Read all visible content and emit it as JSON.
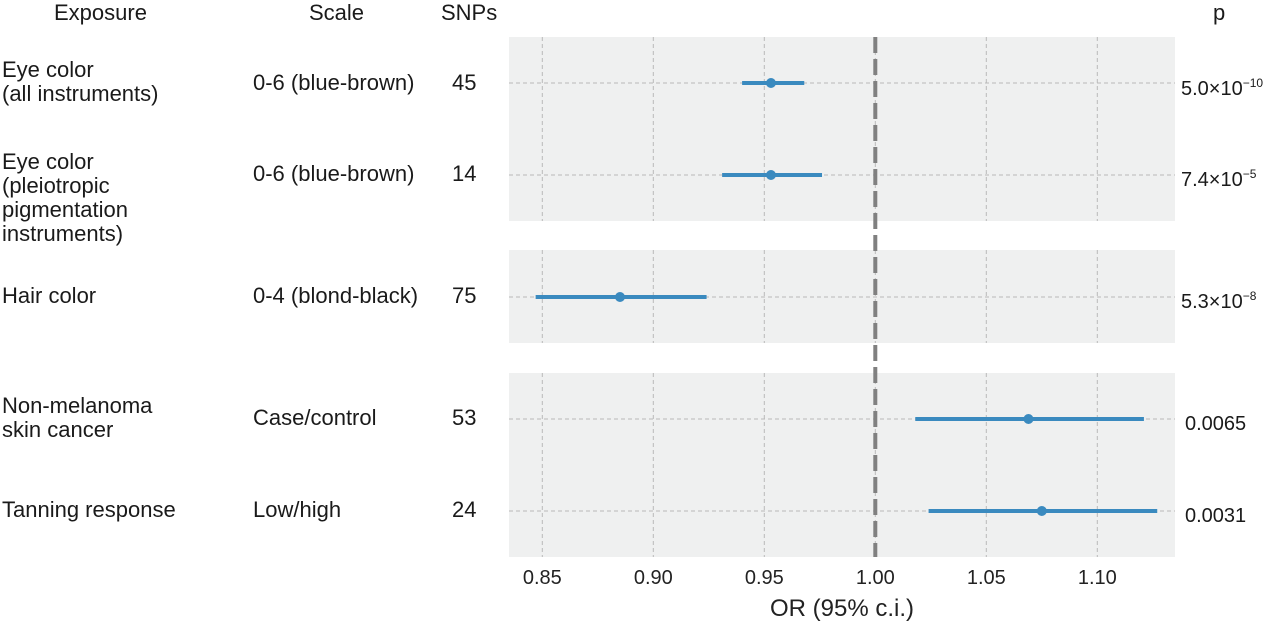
{
  "headers": {
    "exposure": "Exposure",
    "scale": "Scale",
    "snps": "SNPs",
    "p": "p"
  },
  "rows": [
    {
      "exposure": "Eye color\n(all instruments)",
      "scale": "0-6 (blue-brown)",
      "snps": "45",
      "p_base": "5.0×10",
      "p_exp": "−10"
    },
    {
      "exposure": "Eye color\n(pleiotropic\npigmentation\ninstruments)",
      "scale": "0-6 (blue-brown)",
      "snps": "14",
      "p_base": "7.4×10",
      "p_exp": "−5"
    },
    {
      "exposure": "Hair color",
      "scale": "0-4 (blond-black)",
      "snps": "75",
      "p_base": "5.3×10",
      "p_exp": "−8"
    },
    {
      "exposure": "Non-melanoma\nskin cancer",
      "scale": "Case/control",
      "snps": "53",
      "p_base": "0.0065",
      "p_exp": ""
    },
    {
      "exposure": "Tanning response",
      "scale": "Low/high",
      "snps": "24",
      "p_base": "0.0031",
      "p_exp": ""
    }
  ],
  "chart_data": {
    "type": "scatter",
    "subtype": "forest",
    "xlabel": "OR (95% c.i.)",
    "xlim": [
      0.835,
      1.135
    ],
    "xticks": [
      "0.85",
      "0.90",
      "0.95",
      "1.00",
      "1.05",
      "1.10"
    ],
    "reference_line": 1.0,
    "grid": true,
    "point_color": "#3a8abf",
    "panel_color": "#eff0f0",
    "points": [
      {
        "or": 0.953,
        "lo": 0.94,
        "hi": 0.968
      },
      {
        "or": 0.953,
        "lo": 0.931,
        "hi": 0.976
      },
      {
        "or": 0.885,
        "lo": 0.847,
        "hi": 0.924
      },
      {
        "or": 1.069,
        "lo": 1.018,
        "hi": 1.121
      },
      {
        "or": 1.075,
        "lo": 1.024,
        "hi": 1.127
      }
    ]
  }
}
